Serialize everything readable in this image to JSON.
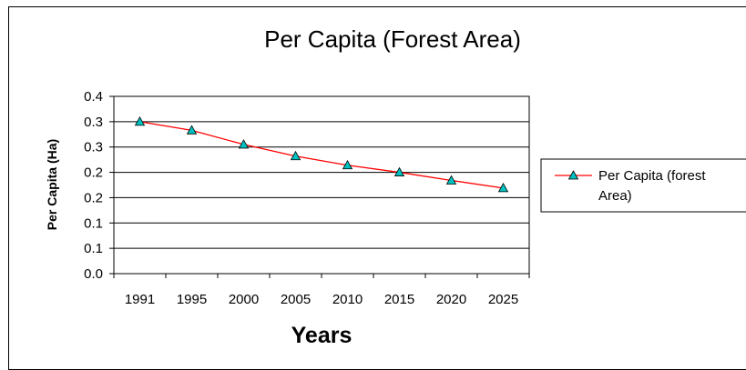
{
  "chart_data": {
    "type": "line",
    "title": "Per Capita (Forest Area)",
    "xlabel": "Years",
    "ylabel": "Per Capita (Ha)",
    "categories": [
      "1991",
      "1995",
      "2000",
      "2005",
      "2010",
      "2015",
      "2020",
      "2025"
    ],
    "y_tick_labels": [
      "0.0",
      "0.1",
      "0.1",
      "0.2",
      "0.2",
      "0.3",
      "0.3",
      "0.4"
    ],
    "ylim": [
      0,
      0.35
    ],
    "grid": true,
    "legend_position": "right",
    "series": [
      {
        "name": "Per Capita (forest Area)",
        "values": [
          0.3,
          0.283,
          0.255,
          0.232,
          0.214,
          0.2,
          0.184,
          0.169
        ],
        "color": "#ff0000",
        "marker_color": "#00c0c0"
      }
    ]
  }
}
